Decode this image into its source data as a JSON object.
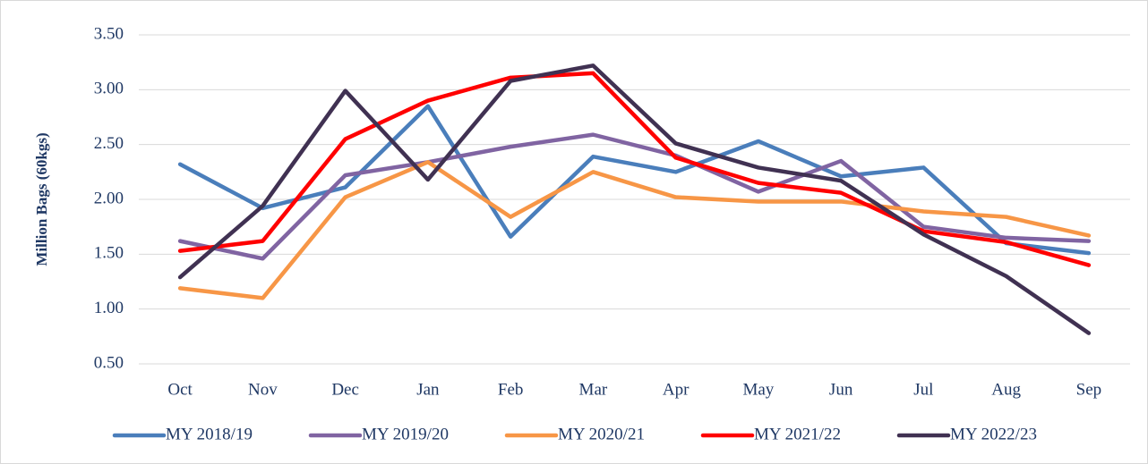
{
  "chart_data": {
    "type": "line",
    "y_axis_label": "Million Bags (60kgs)",
    "categories": [
      "Oct",
      "Nov",
      "Dec",
      "Jan",
      "Feb",
      "Mar",
      "Apr",
      "May",
      "Jun",
      "Jul",
      "Aug",
      "Sep"
    ],
    "ylim": [
      0.5,
      3.5
    ],
    "yticks": [
      {
        "value": 0.5,
        "label": "0.50"
      },
      {
        "value": 1,
        "label": "1.00"
      },
      {
        "value": 1.5,
        "label": "1.50"
      },
      {
        "value": 2,
        "label": "2.00"
      },
      {
        "value": 2.5,
        "label": "2.50"
      },
      {
        "value": 3,
        "label": "3.00"
      },
      {
        "value": 3.5,
        "label": "3.50"
      }
    ],
    "grid": true,
    "legend": "bottom",
    "series": [
      {
        "name": "MY 2018/19",
        "color": "#4a7ebb",
        "values": [
          2.32,
          1.92,
          2.11,
          2.85,
          1.66,
          2.39,
          2.25,
          2.53,
          2.21,
          2.29,
          1.6,
          1.51
        ]
      },
      {
        "name": "MY 2019/20",
        "color": "#8064a2",
        "values": [
          1.62,
          1.46,
          2.22,
          2.34,
          2.48,
          2.59,
          2.4,
          2.07,
          2.35,
          1.75,
          1.65,
          1.62
        ]
      },
      {
        "name": "MY 2020/21",
        "color": "#f79646",
        "values": [
          1.19,
          1.1,
          2.02,
          2.34,
          1.84,
          2.25,
          2.02,
          1.98,
          1.98,
          1.89,
          1.84,
          1.67
        ]
      },
      {
        "name": "MY 2021/22",
        "color": "#ff0000",
        "values": [
          1.53,
          1.62,
          2.55,
          2.9,
          3.11,
          3.15,
          2.38,
          2.15,
          2.06,
          1.71,
          1.61,
          1.4
        ]
      },
      {
        "name": "MY 2022/23",
        "color": "#403152",
        "values": [
          1.29,
          1.94,
          2.99,
          2.18,
          3.08,
          3.22,
          2.51,
          2.29,
          2.17,
          1.68,
          1.3,
          0.78
        ]
      }
    ]
  }
}
